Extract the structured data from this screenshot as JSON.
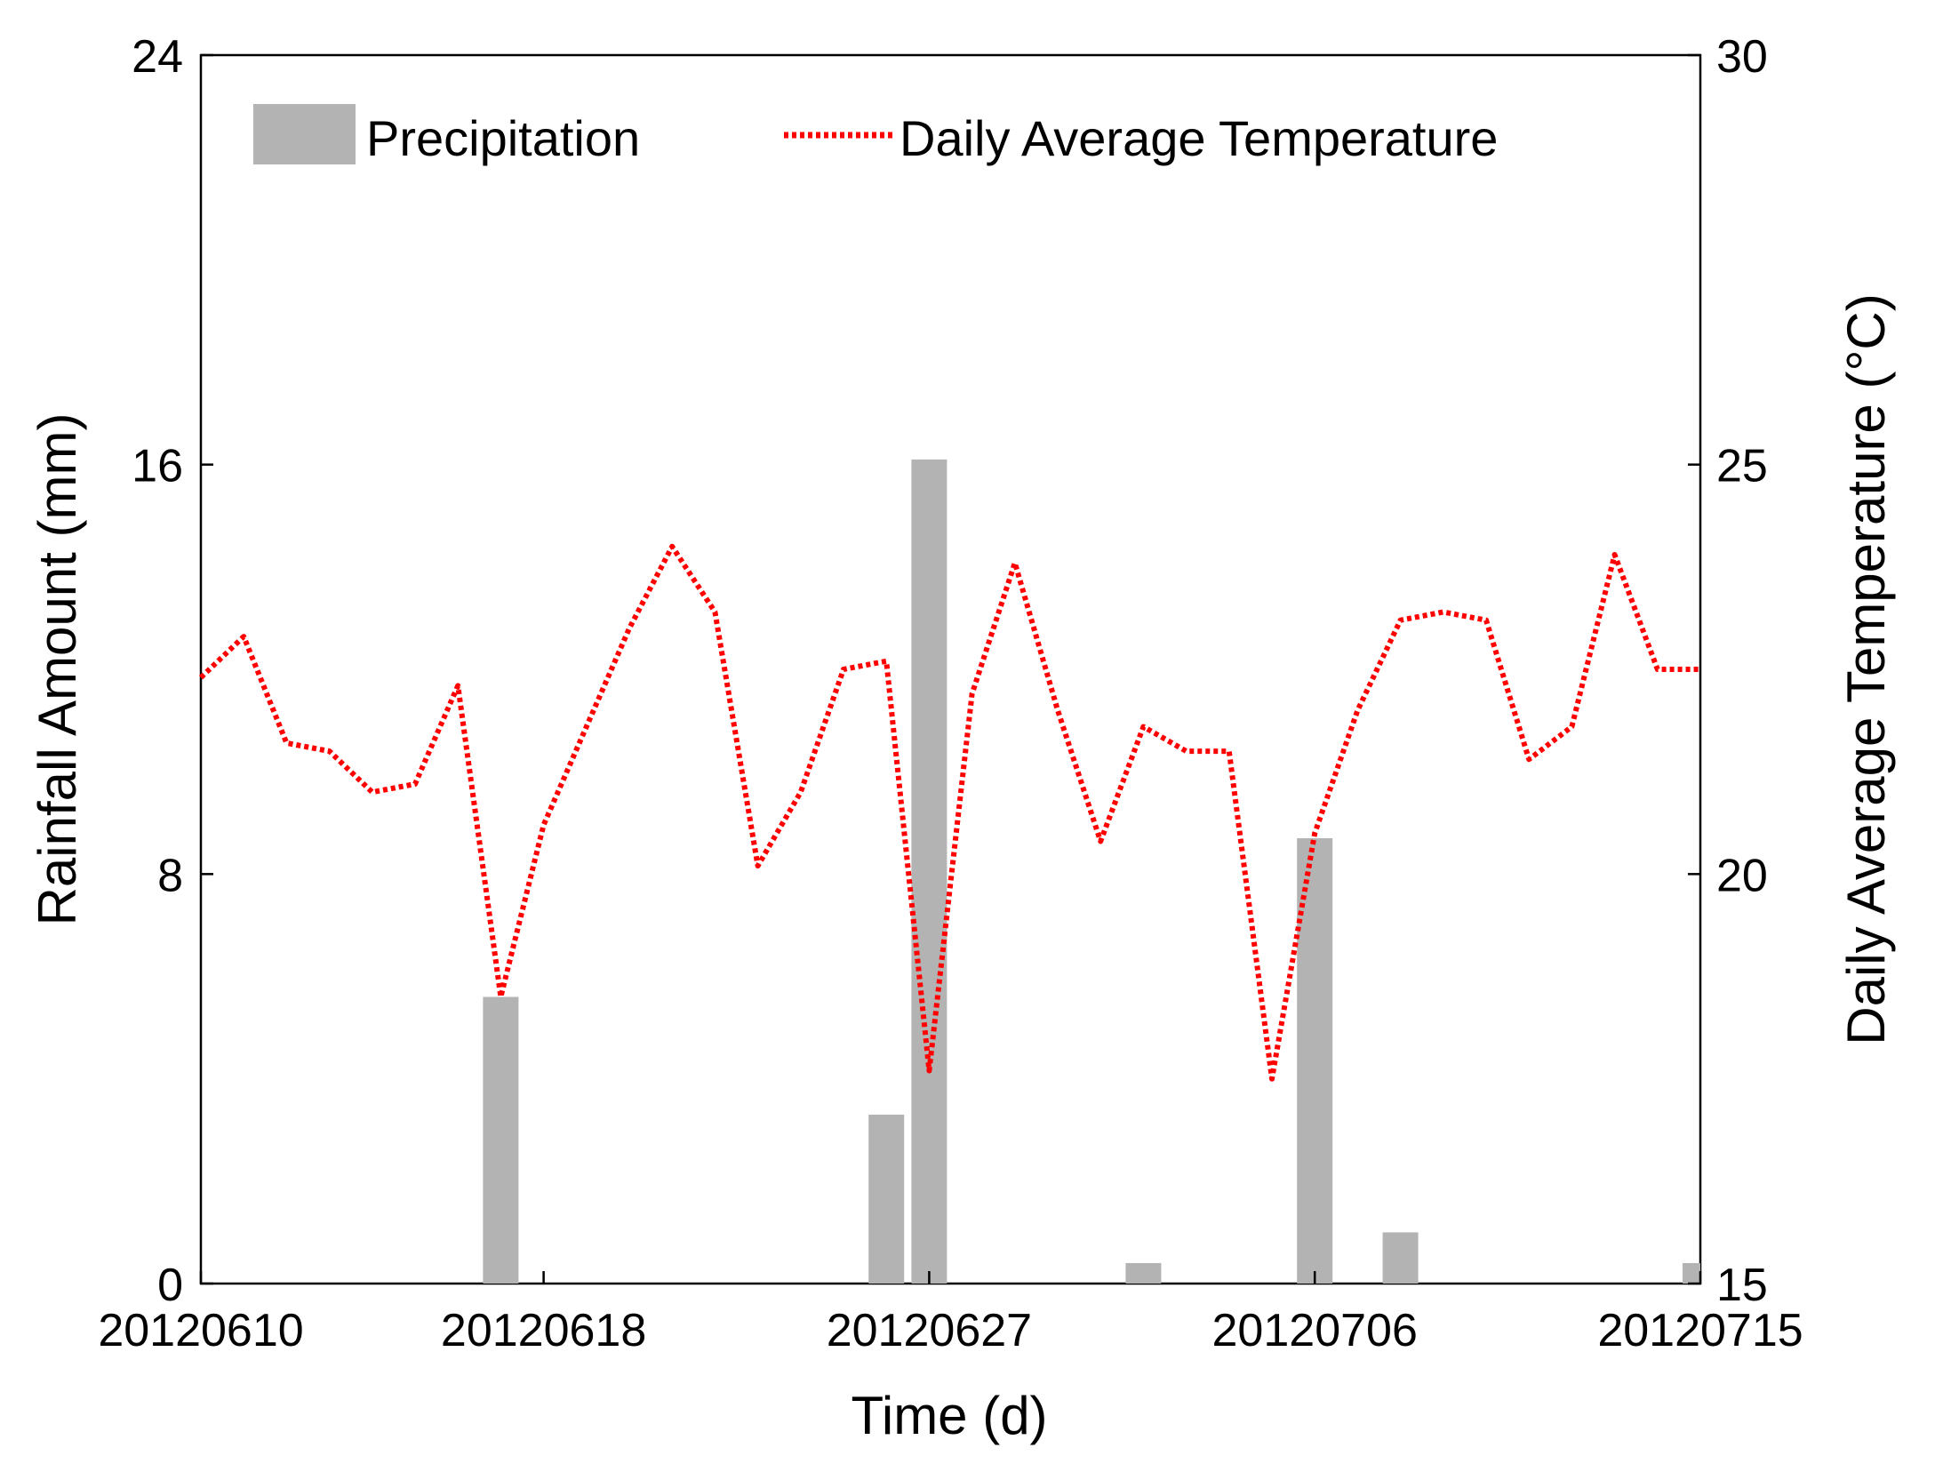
{
  "chart_data": {
    "type": "bar+line",
    "title": "",
    "xlabel": "Time (d)",
    "ylabel_left": "Rainfall Amount (mm)",
    "ylabel_right": "Daily Average Temperature (°C)",
    "ylim_left": [
      0,
      24
    ],
    "ylim_right": [
      15,
      30
    ],
    "xlim": [
      0,
      35
    ],
    "yticks_left": [
      0,
      8,
      16,
      24
    ],
    "yticks_right": [
      15,
      20,
      25,
      30
    ],
    "xticks": [
      {
        "day": 0,
        "label": "20120610"
      },
      {
        "day": 8,
        "label": "20120618"
      },
      {
        "day": 17,
        "label": "20120627"
      },
      {
        "day": 26,
        "label": "20120706"
      },
      {
        "day": 35,
        "label": "20120715"
      }
    ],
    "legend": {
      "position": "top",
      "precipitation": "Precipitation",
      "temperature": "Daily Average Temperature"
    },
    "series": [
      {
        "name": "Precipitation",
        "kind": "bar",
        "axis": "left",
        "color": "#b3b3b3",
        "x": [
          7,
          16,
          17,
          22,
          26,
          28,
          35
        ],
        "values": [
          5.6,
          3.3,
          16.1,
          0.4,
          8.7,
          1.0,
          0.4
        ]
      },
      {
        "name": "Daily Average Temperature",
        "kind": "line",
        "axis": "right",
        "color": "#ff0000",
        "style": "dotted",
        "x": [
          0,
          1,
          2,
          3,
          4,
          5,
          6,
          7,
          8,
          9,
          10,
          11,
          12,
          13,
          14,
          15,
          16,
          17,
          18,
          19,
          20,
          21,
          22,
          23,
          24,
          25,
          26,
          27,
          28,
          29,
          30,
          31,
          32,
          33,
          34,
          35
        ],
        "values": [
          22.4,
          22.9,
          21.6,
          21.5,
          21.0,
          21.1,
          22.3,
          18.5,
          20.6,
          21.8,
          23.0,
          24.0,
          23.2,
          20.1,
          21.0,
          22.5,
          22.6,
          17.6,
          22.2,
          23.8,
          22.0,
          20.4,
          21.8,
          21.5,
          21.5,
          17.5,
          20.5,
          22.0,
          23.1,
          23.2,
          23.1,
          21.4,
          21.8,
          23.9,
          22.5,
          22.5
        ]
      }
    ]
  }
}
